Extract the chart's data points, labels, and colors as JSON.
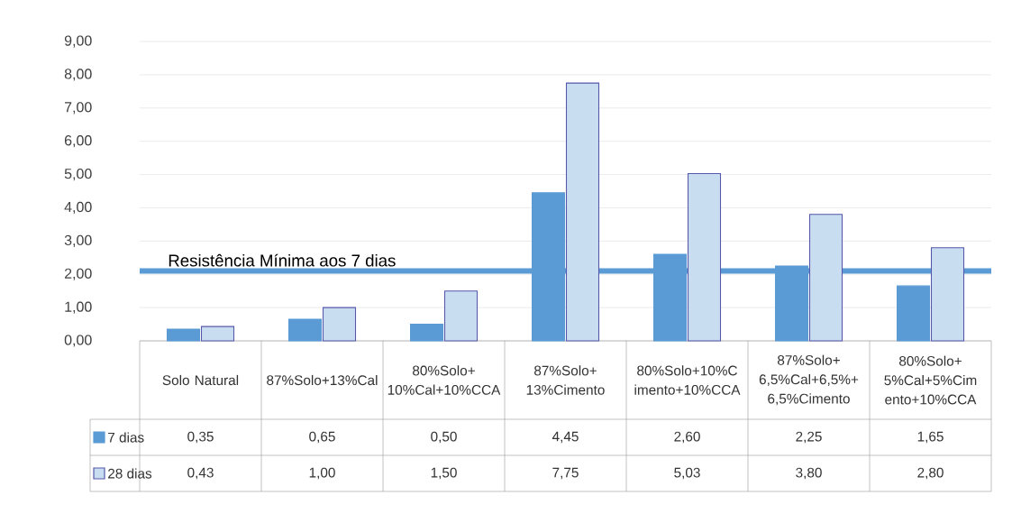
{
  "chart_data": {
    "type": "bar",
    "categories": [
      "Solo Natural",
      "87%Solo+13%Cal",
      "80%Solo+10%Cal+10%CCA",
      "87%Solo+13%Cimento",
      "80%Solo+10%Cimento+10%CCA",
      "87%Solo+6,5%Cal+6,5%+6,5%Cimento",
      "80%Solo+5%Cal+5%Cimento+10%CCA"
    ],
    "series": [
      {
        "name": "7 dias",
        "color": "#5b9bd5",
        "values": [
          0.35,
          0.65,
          0.5,
          4.45,
          2.6,
          2.25,
          1.65
        ],
        "value_labels": [
          "0,35",
          "0,65",
          "0,50",
          "4,45",
          "2,60",
          "2,25",
          "1,65"
        ]
      },
      {
        "name": "28 dias",
        "color": "#c9ddf1",
        "values": [
          0.43,
          1.0,
          1.5,
          7.75,
          5.03,
          3.8,
          2.8
        ],
        "value_labels": [
          "0,43",
          "1,00",
          "1,50",
          "7,75",
          "5,03",
          "3,80",
          "2,80"
        ]
      }
    ],
    "ylim": [
      0,
      9
    ],
    "yticks": [
      {
        "value": 0,
        "label": "0,00"
      },
      {
        "value": 1,
        "label": "1,00"
      },
      {
        "value": 2,
        "label": "2,00"
      },
      {
        "value": 3,
        "label": "3,00"
      },
      {
        "value": 4,
        "label": "4,00"
      },
      {
        "value": 5,
        "label": "5,00"
      },
      {
        "value": 6,
        "label": "6,00"
      },
      {
        "value": 7,
        "label": "7,00"
      },
      {
        "value": 8,
        "label": "8,00"
      },
      {
        "value": 9,
        "label": "9,00"
      }
    ],
    "ref_lines": [
      {
        "axis": "y",
        "value": 2.1,
        "label": "Resistência Mínima aos 7 dias",
        "color": "#5b9bd5"
      }
    ],
    "grid": "y",
    "legend": "bottom left"
  }
}
